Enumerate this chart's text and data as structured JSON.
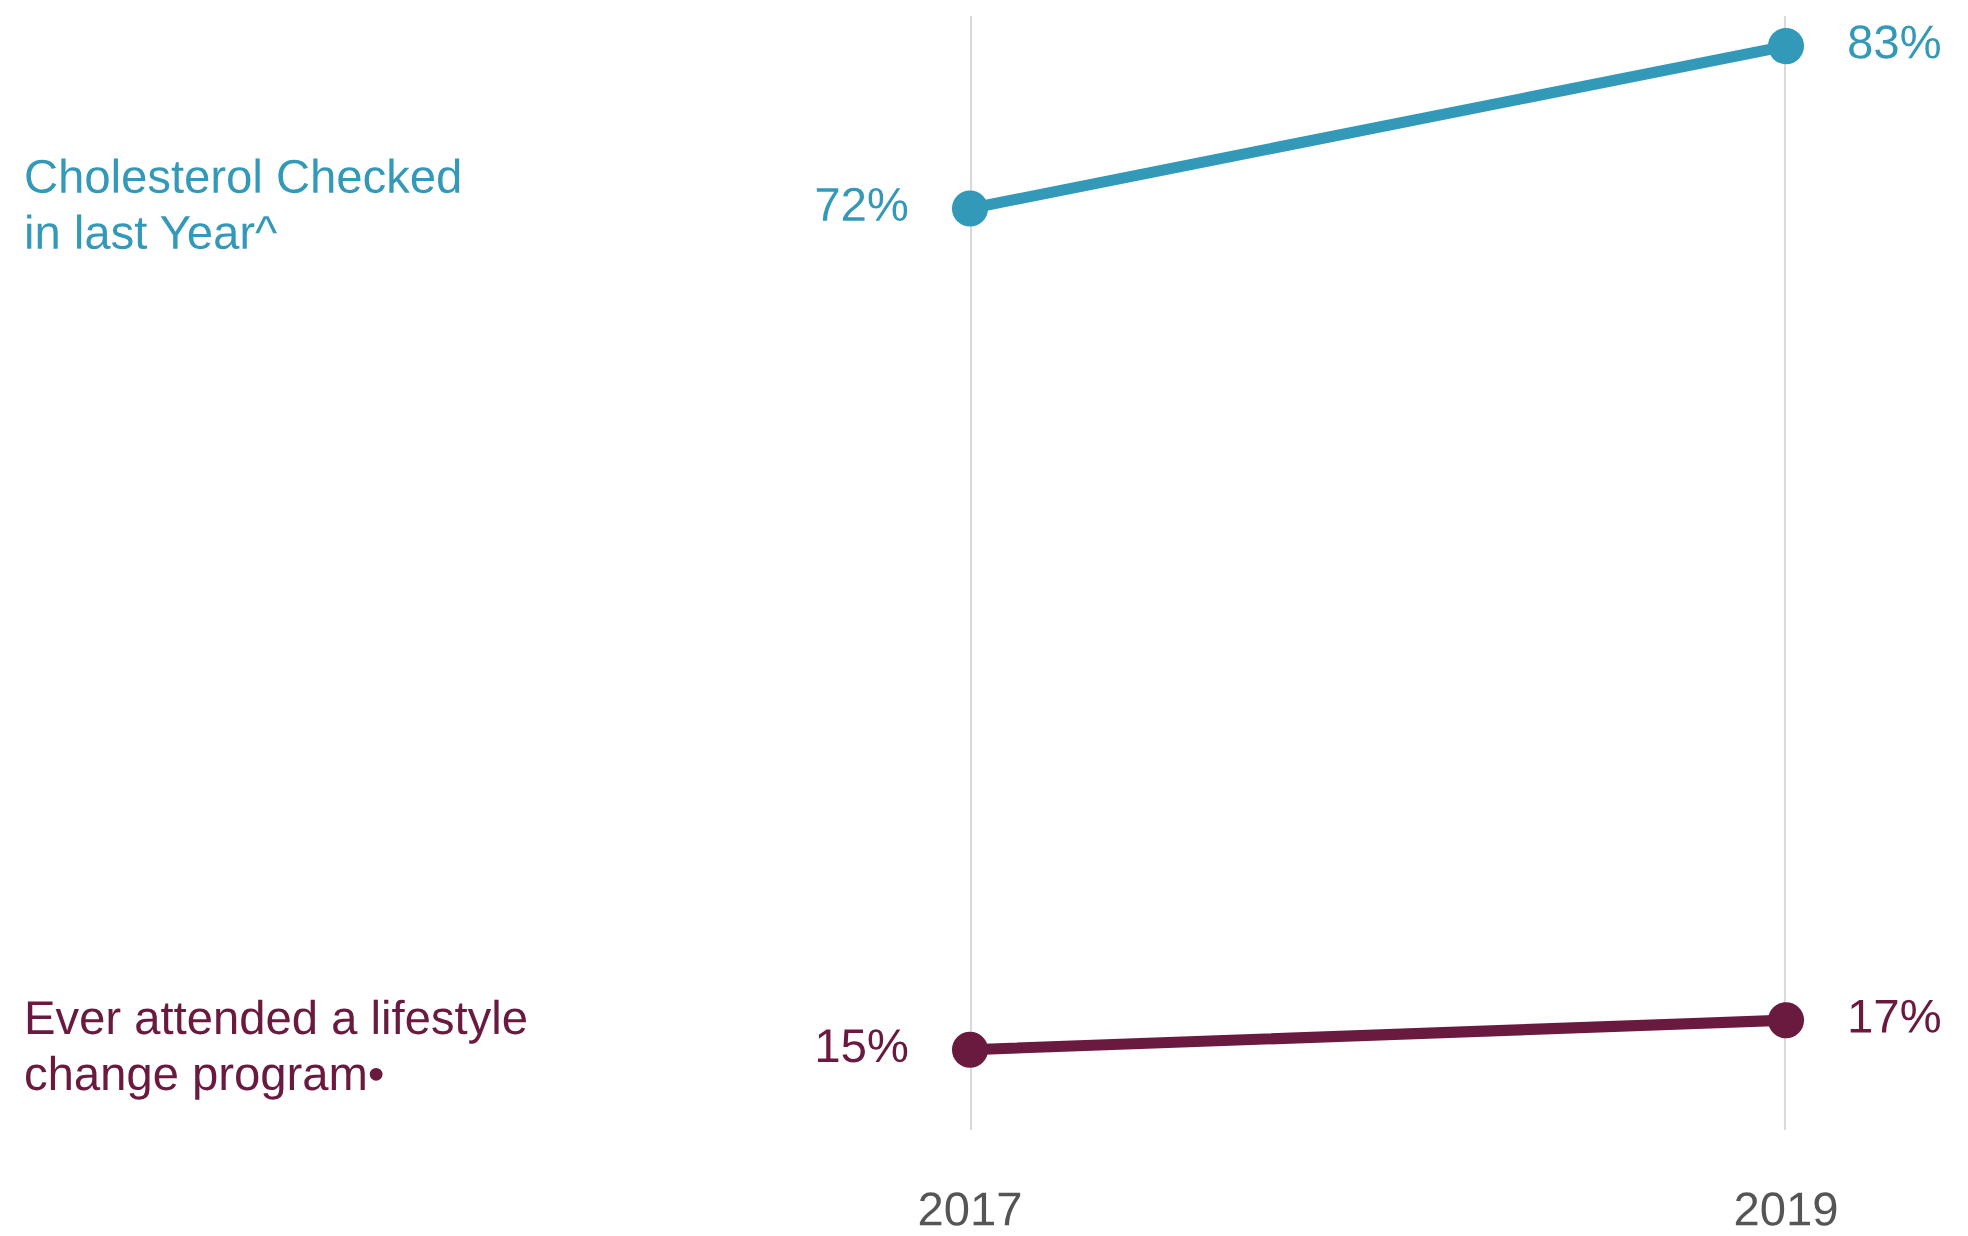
{
  "chart_data": {
    "type": "line",
    "categories": [
      "2017",
      "2019"
    ],
    "series": [
      {
        "name": "Cholesterol Checked\nin last Year^",
        "color": "#3399b8",
        "values": [
          72,
          83
        ],
        "value_labels": [
          "72%",
          "83%"
        ]
      },
      {
        "name": "Ever attended a lifestyle\nchange program•",
        "color": "#6b1a3f",
        "values": [
          15,
          17
        ],
        "value_labels": [
          "15%",
          "17%"
        ]
      }
    ],
    "grid": "x",
    "tick_labels": "x",
    "marker": "circle",
    "line_style": "solid",
    "legend": false
  }
}
